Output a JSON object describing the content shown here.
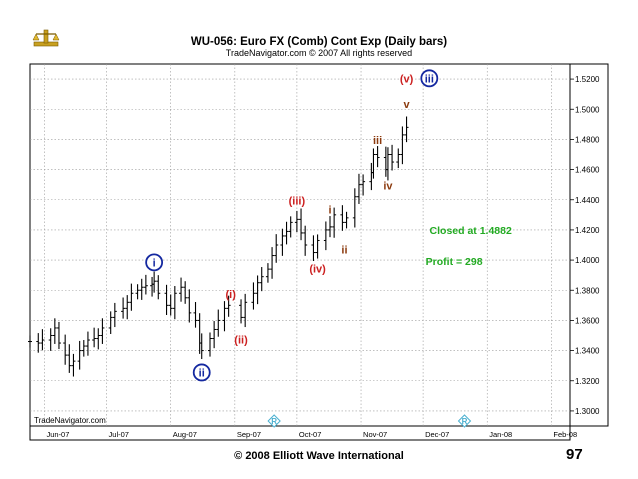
{
  "chart_data": {
    "type": "ohlc",
    "title": "WU-056:  Euro FX (Comb) Cont Exp  (Daily bars)",
    "subtitle": "TradeNavigator.com © 2007 All rights reserved",
    "watermark": "TradeNavigator.com",
    "xlabel": "",
    "ylabel": "",
    "ylim": [
      1.29,
      1.53
    ],
    "x_range": [
      "2007-05-25",
      "2008-02-10"
    ],
    "y_ticks": [
      "1.3000",
      "1.3200",
      "1.3400",
      "1.3600",
      "1.3800",
      "1.4000",
      "1.4200",
      "1.4400",
      "1.4600",
      "1.4800",
      "1.5000",
      "1.5200"
    ],
    "x_ticks": [
      {
        "date": "2007-06-01",
        "label": "Jun-07"
      },
      {
        "date": "2007-07-01",
        "label": "Jul-07"
      },
      {
        "date": "2007-08-01",
        "label": "Aug-07"
      },
      {
        "date": "2007-09-01",
        "label": "Sep-07"
      },
      {
        "date": "2007-10-01",
        "label": "Oct-07"
      },
      {
        "date": "2007-11-01",
        "label": "Nov-07"
      },
      {
        "date": "2007-12-01",
        "label": "Dec-07"
      },
      {
        "date": "2008-01-01",
        "label": "Jan-08"
      },
      {
        "date": "2008-02-01",
        "label": "Feb-08"
      }
    ],
    "grid": true,
    "series": [
      {
        "date": "2007-05-25",
        "close": 1.346
      },
      {
        "date": "2007-05-29",
        "close": 1.345
      },
      {
        "date": "2007-05-31",
        "close": 1.347
      },
      {
        "date": "2007-06-04",
        "close": 1.35
      },
      {
        "date": "2007-06-06",
        "close": 1.355
      },
      {
        "date": "2007-06-08",
        "close": 1.345
      },
      {
        "date": "2007-06-11",
        "close": 1.337
      },
      {
        "date": "2007-06-13",
        "close": 1.33
      },
      {
        "date": "2007-06-15",
        "close": 1.333
      },
      {
        "date": "2007-06-18",
        "close": 1.34
      },
      {
        "date": "2007-06-20",
        "close": 1.343
      },
      {
        "date": "2007-06-22",
        "close": 1.347
      },
      {
        "date": "2007-06-25",
        "close": 1.348
      },
      {
        "date": "2007-06-27",
        "close": 1.35
      },
      {
        "date": "2007-06-29",
        "close": 1.355
      },
      {
        "date": "2007-07-03",
        "close": 1.362
      },
      {
        "date": "2007-07-05",
        "close": 1.366
      },
      {
        "date": "2007-07-09",
        "close": 1.368
      },
      {
        "date": "2007-07-11",
        "close": 1.372
      },
      {
        "date": "2007-07-13",
        "close": 1.378
      },
      {
        "date": "2007-07-16",
        "close": 1.38
      },
      {
        "date": "2007-07-18",
        "close": 1.382
      },
      {
        "date": "2007-07-20",
        "close": 1.383
      },
      {
        "date": "2007-07-23",
        "close": 1.384
      },
      {
        "date": "2007-07-24",
        "close": 1.386
      },
      {
        "date": "2007-07-26",
        "close": 1.378
      },
      {
        "date": "2007-07-30",
        "close": 1.37
      },
      {
        "date": "2007-08-01",
        "close": 1.368
      },
      {
        "date": "2007-08-03",
        "close": 1.378
      },
      {
        "date": "2007-08-06",
        "close": 1.382
      },
      {
        "date": "2007-08-08",
        "close": 1.375
      },
      {
        "date": "2007-08-10",
        "close": 1.365
      },
      {
        "date": "2007-08-13",
        "close": 1.36
      },
      {
        "date": "2007-08-15",
        "close": 1.345
      },
      {
        "date": "2007-08-16",
        "close": 1.34
      },
      {
        "date": "2007-08-20",
        "close": 1.348
      },
      {
        "date": "2007-08-22",
        "close": 1.354
      },
      {
        "date": "2007-08-24",
        "close": 1.36
      },
      {
        "date": "2007-08-27",
        "close": 1.368
      },
      {
        "date": "2007-08-29",
        "close": 1.37
      },
      {
        "date": "2007-09-04",
        "close": 1.362
      },
      {
        "date": "2007-09-06",
        "close": 1.372
      },
      {
        "date": "2007-09-10",
        "close": 1.378
      },
      {
        "date": "2007-09-12",
        "close": 1.385
      },
      {
        "date": "2007-09-14",
        "close": 1.389
      },
      {
        "date": "2007-09-17",
        "close": 1.394
      },
      {
        "date": "2007-09-19",
        "close": 1.403
      },
      {
        "date": "2007-09-21",
        "close": 1.41
      },
      {
        "date": "2007-09-24",
        "close": 1.416
      },
      {
        "date": "2007-09-26",
        "close": 1.419
      },
      {
        "date": "2007-09-28",
        "close": 1.425
      },
      {
        "date": "2007-10-01",
        "close": 1.427
      },
      {
        "date": "2007-10-03",
        "close": 1.418
      },
      {
        "date": "2007-10-05",
        "close": 1.41
      },
      {
        "date": "2007-10-09",
        "close": 1.405
      },
      {
        "date": "2007-10-11",
        "close": 1.413
      },
      {
        "date": "2007-10-15",
        "close": 1.42
      },
      {
        "date": "2007-10-17",
        "close": 1.422
      },
      {
        "date": "2007-10-19",
        "close": 1.43
      },
      {
        "date": "2007-10-23",
        "close": 1.425
      },
      {
        "date": "2007-10-25",
        "close": 1.428
      },
      {
        "date": "2007-10-29",
        "close": 1.442
      },
      {
        "date": "2007-10-31",
        "close": 1.45
      },
      {
        "date": "2007-11-02",
        "close": 1.452
      },
      {
        "date": "2007-11-06",
        "close": 1.458
      },
      {
        "date": "2007-11-07",
        "close": 1.47
      },
      {
        "date": "2007-11-09",
        "close": 1.468
      },
      {
        "date": "2007-11-13",
        "close": 1.46
      },
      {
        "date": "2007-11-14",
        "close": 1.47
      },
      {
        "date": "2007-11-16",
        "close": 1.465
      },
      {
        "date": "2007-11-19",
        "close": 1.47
      },
      {
        "date": "2007-11-21",
        "close": 1.483
      },
      {
        "date": "2007-11-23",
        "close": 1.488
      }
    ],
    "wave_labels": [
      {
        "text": "i",
        "date": "2007-07-24",
        "price": 1.3985,
        "style": "circle"
      },
      {
        "text": "ii",
        "date": "2007-08-16",
        "price": 1.3255,
        "style": "circle"
      },
      {
        "text": "(i)",
        "date": "2007-08-30",
        "price": 1.3775,
        "style": "red"
      },
      {
        "text": "(ii)",
        "date": "2007-09-04",
        "price": 1.3475,
        "style": "red"
      },
      {
        "text": "(iii)",
        "date": "2007-10-01",
        "price": 1.4395,
        "style": "red"
      },
      {
        "text": "(iv)",
        "date": "2007-10-11",
        "price": 1.3945,
        "style": "red"
      },
      {
        "text": "i",
        "date": "2007-10-17",
        "price": 1.4335,
        "style": "brown"
      },
      {
        "text": "ii",
        "date": "2007-10-24",
        "price": 1.407,
        "style": "brown"
      },
      {
        "text": "iii",
        "date": "2007-11-09",
        "price": 1.4795,
        "style": "brown"
      },
      {
        "text": "iv",
        "date": "2007-11-14",
        "price": 1.4495,
        "style": "brown"
      },
      {
        "text": "v",
        "date": "2007-11-23",
        "price": 1.5035,
        "style": "brown"
      },
      {
        "text": "(v)",
        "date": "2007-11-23",
        "price": 1.5205,
        "style": "red"
      },
      {
        "text": "iii",
        "date": "2007-12-04",
        "price": 1.5205,
        "style": "circle"
      }
    ],
    "annotations": [
      {
        "text": "Closed at 1.4882",
        "date": "2007-12-24",
        "price": 1.42
      },
      {
        "text": "Profit = 298",
        "date": "2007-12-16",
        "price": 1.3995
      }
    ],
    "markers": [
      {
        "text": "R",
        "date": "2007-09-20"
      },
      {
        "text": "R",
        "date": "2007-12-21"
      }
    ]
  },
  "footer": {
    "copyright": "© 2008 Elliott Wave International",
    "page_number": "97"
  },
  "colors": {
    "bars": "#000000",
    "grid": "#9a9a9a",
    "circle_labels": "#1428a0",
    "red_labels": "#cc2020",
    "brown_labels": "#8b3a0e",
    "annotations": "#22aa22",
    "markers": "#4ab0d0"
  }
}
